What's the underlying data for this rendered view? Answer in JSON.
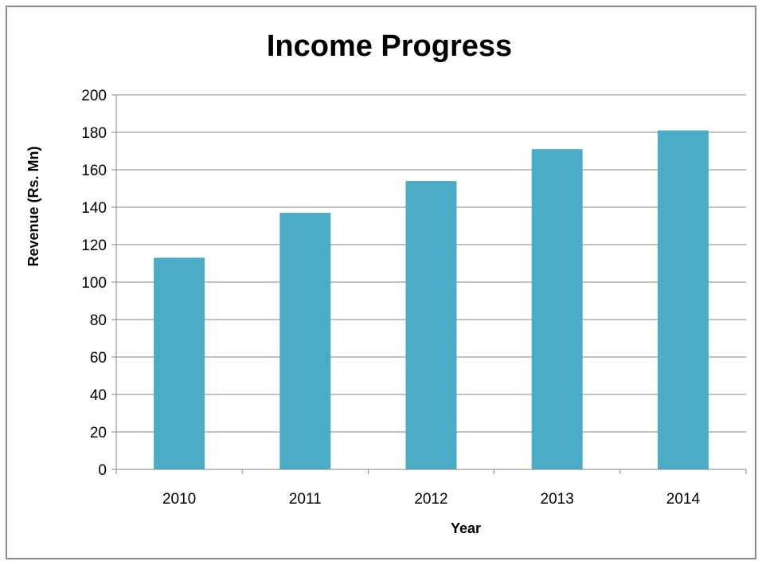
{
  "chart_data": {
    "type": "bar",
    "title": "Income Progress",
    "xlabel": "Year",
    "ylabel": "Revenue (Rs. Mn)",
    "categories": [
      "2010",
      "2011",
      "2012",
      "2013",
      "2014"
    ],
    "values": [
      113,
      137,
      154,
      171,
      181
    ],
    "ylim": [
      0,
      200
    ],
    "yticks": [
      "0",
      "20",
      "40",
      "60",
      "80",
      "100",
      "120",
      "140",
      "160",
      "180",
      "200"
    ],
    "grid": "horizontal",
    "legend": "none",
    "bar_color": "#4bacc6",
    "grid_color": "#868686"
  }
}
